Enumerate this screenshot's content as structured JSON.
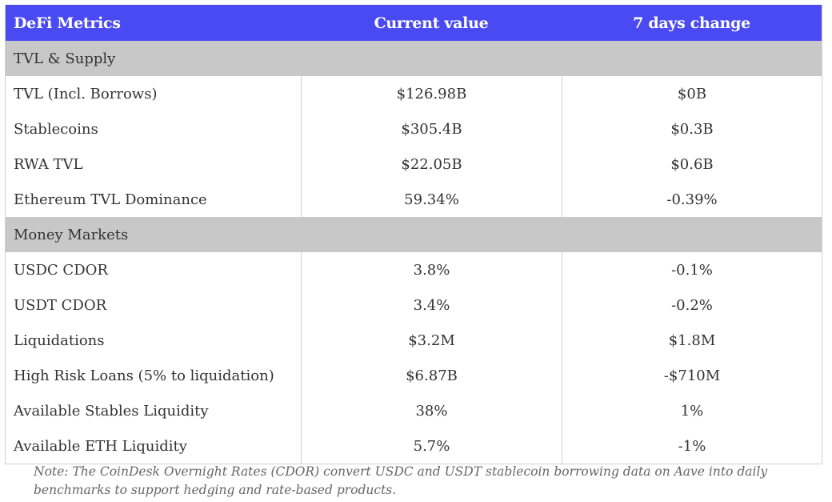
{
  "table": {
    "header": [
      "DeFi Metrics",
      "Current value",
      "7 days change"
    ],
    "sections": [
      {
        "title": "TVL & Supply",
        "rows": [
          [
            "TVL (Incl. Borrows)",
            "$126.98B",
            "$0B"
          ],
          [
            "Stablecoins",
            "$305.4B",
            "$0.3B"
          ],
          [
            "RWA TVL",
            "$22.05B",
            "$0.6B"
          ],
          [
            "Ethereum TVL Dominance",
            "59.34%",
            "-0.39%"
          ]
        ]
      },
      {
        "title": "Money Markets",
        "rows": [
          [
            "USDC CDOR",
            "3.8%",
            "-0.1%"
          ],
          [
            "USDT CDOR",
            "3.4%",
            "-0.2%"
          ],
          [
            "Liquidations",
            "$3.2M",
            "$1.8M"
          ],
          [
            "High Risk Loans (5% to liquidation)",
            "$6.87B",
            "-$710M"
          ],
          [
            "Available Stables Liquidity",
            "38%",
            "1%"
          ],
          [
            "Available ETH Liquidity",
            "5.7%",
            "-1%"
          ]
        ]
      }
    ],
    "note": "Note: The CoinDesk Overnight Rates (CDOR) convert USDC and USDT stablecoin borrowing data on Aave into daily benchmarks to support hedging and rate-based products."
  }
}
